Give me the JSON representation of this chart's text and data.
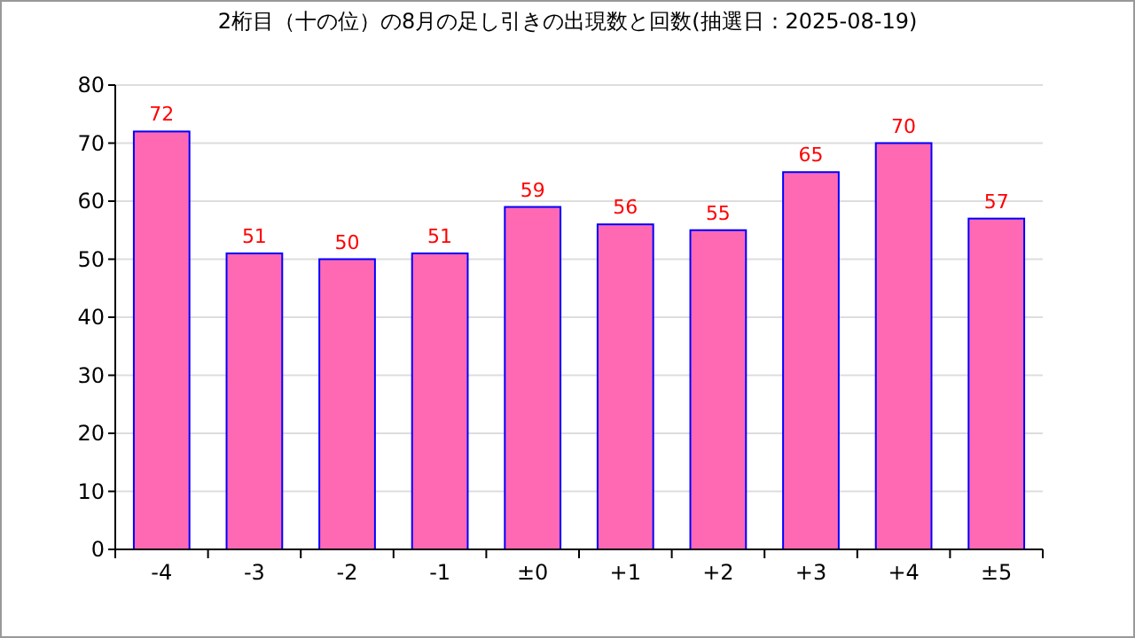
{
  "chart_data": {
    "type": "bar",
    "title": "2桁目（十の位）の8月の足し引きの出現数と回数(抽選日：2025-08-19)",
    "categories": [
      "-4",
      "-3",
      "-2",
      "-1",
      "±0",
      "+1",
      "+2",
      "+3",
      "+4",
      "±5"
    ],
    "values": [
      72,
      51,
      50,
      51,
      59,
      56,
      55,
      65,
      70,
      57
    ],
    "color": "#ff69b4",
    "ylim": [
      0,
      80
    ],
    "yticks": [
      0,
      10,
      20,
      30,
      40,
      50,
      60,
      70,
      80
    ],
    "grid": "y",
    "data_labels": true
  }
}
